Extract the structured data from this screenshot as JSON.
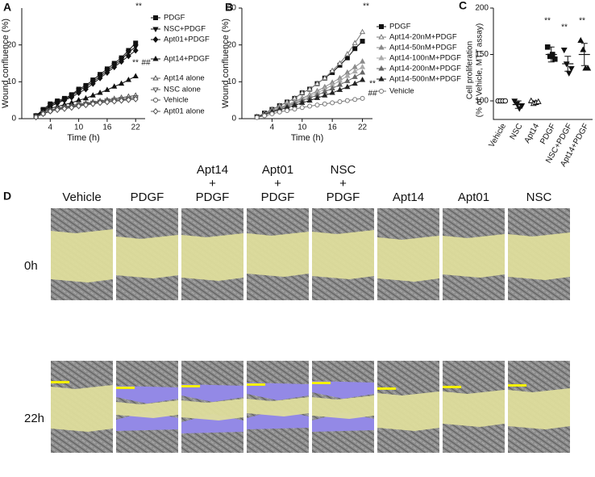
{
  "chart_data": [
    {
      "type": "line",
      "panel": "A",
      "xlabel": "Time (h)",
      "ylabel": "Wound confluence (%)",
      "x": [
        1,
        2.5,
        4,
        5.5,
        7,
        8.5,
        10,
        11.5,
        13,
        14.5,
        16,
        17.5,
        19,
        20.5,
        22
      ],
      "xlim": [
        -2,
        24
      ],
      "xticks": [
        4,
        10,
        16,
        22
      ],
      "ylim": [
        0,
        30
      ],
      "yticks": [
        0,
        10,
        20
      ],
      "annotations": [
        "**",
        "**",
        "##"
      ],
      "series": [
        {
          "name": "PDGF",
          "color": "#111111",
          "marker": "square",
          "filled": true,
          "values": [
            0.8,
            2.5,
            4,
            4.8,
            5.5,
            6.5,
            8,
            9,
            10.5,
            12,
            13.5,
            15,
            16.5,
            18.5,
            20.5
          ]
        },
        {
          "name": "NSC+PDGF",
          "color": "#111111",
          "marker": "triangle-down",
          "filled": true,
          "values": [
            0.8,
            2.2,
            3.6,
            4.5,
            5.2,
            6.2,
            7.6,
            8.6,
            10,
            11.5,
            13,
            14.5,
            16,
            18,
            19.5
          ]
        },
        {
          "name": "Apt01+PDGF",
          "color": "#111111",
          "marker": "diamond",
          "filled": true,
          "values": [
            0.7,
            2,
            3.3,
            4.2,
            5,
            5.8,
            7,
            8,
            9.5,
            11,
            12.5,
            14,
            15.5,
            17,
            18.5
          ]
        },
        {
          "name": "Apt14+PDGF",
          "color": "#111111",
          "marker": "triangle-up",
          "filled": true,
          "values": [
            0.6,
            1.8,
            2.8,
            3.3,
            3.8,
            4.3,
            5,
            5.5,
            6.3,
            7,
            7.8,
            8.7,
            9.5,
            10.5,
            11.5
          ]
        },
        {
          "name": "Apt14 alone",
          "color": "#555555",
          "marker": "triangle-up",
          "filled": false,
          "values": [
            0.5,
            1.5,
            2.3,
            2.8,
            3.2,
            3.5,
            4,
            4.2,
            4.5,
            4.8,
            5.1,
            5.4,
            5.7,
            6,
            6.3
          ]
        },
        {
          "name": "NSC alone",
          "color": "#555555",
          "marker": "triangle-down",
          "filled": false,
          "values": [
            0.5,
            1.5,
            2.2,
            2.7,
            3,
            3.3,
            3.7,
            4,
            4.3,
            4.6,
            4.9,
            5.1,
            5.3,
            5.5,
            5.8
          ]
        },
        {
          "name": "Vehicle",
          "color": "#555555",
          "marker": "circle",
          "filled": false,
          "values": [
            0.4,
            1.3,
            2,
            2.5,
            2.8,
            3.1,
            3.5,
            3.8,
            4.1,
            4.4,
            4.6,
            4.8,
            5,
            5.2,
            5.4
          ]
        },
        {
          "name": "Apt01 alone",
          "color": "#555555",
          "marker": "diamond",
          "filled": false,
          "values": [
            0.4,
            1.3,
            2,
            2.4,
            2.7,
            3,
            3.4,
            3.7,
            4,
            4.3,
            4.5,
            4.7,
            4.9,
            5.1,
            5.3
          ]
        }
      ]
    },
    {
      "type": "line",
      "panel": "B",
      "xlabel": "Time (h)",
      "ylabel": "Wound confluence (%)",
      "x": [
        1,
        2.5,
        4,
        5.5,
        7,
        8.5,
        10,
        11.5,
        13,
        14.5,
        16,
        17.5,
        19,
        20.5,
        22
      ],
      "xlim": [
        -2,
        24
      ],
      "xticks": [
        4,
        10,
        16,
        22
      ],
      "ylim": [
        0,
        30
      ],
      "yticks": [
        0,
        10,
        20,
        30
      ],
      "annotations": [
        "**",
        "**",
        "##"
      ],
      "series": [
        {
          "name": "PDGF",
          "color": "#111111",
          "marker": "square",
          "filled": true,
          "values": [
            0.5,
            1.5,
            2.5,
            3.5,
            4.5,
            5.5,
            7,
            8,
            9.5,
            11,
            12.5,
            14.5,
            16.5,
            19,
            21
          ]
        },
        {
          "name": "Apt14-20nM+PDGF",
          "color": "#777777",
          "marker": "triangle-up",
          "filled": false,
          "values": [
            0.5,
            1.5,
            2.5,
            3.5,
            4.5,
            5.5,
            7,
            8,
            9.5,
            11,
            13,
            15,
            17.5,
            20.5,
            23.5
          ]
        },
        {
          "name": "Apt14-50nM+PDGF",
          "color": "#8a8a8a",
          "marker": "triangle-up",
          "filled": true,
          "values": [
            0.5,
            1.3,
            2.2,
            3,
            3.8,
            4.6,
            5.6,
            6.5,
            7.5,
            8.6,
            9.8,
            11,
            12.5,
            14,
            15.5
          ]
        },
        {
          "name": "Apt14-100nM+PDGF",
          "color": "#aaaaaa",
          "marker": "triangle-up",
          "filled": true,
          "values": [
            0.5,
            1.3,
            2.1,
            2.9,
            3.6,
            4.4,
            5.3,
            6.1,
            7,
            8,
            9.1,
            10.3,
            11.6,
            12.8,
            14
          ]
        },
        {
          "name": "Apt14-200nM+PDGF",
          "color": "#666666",
          "marker": "triangle-up",
          "filled": true,
          "values": [
            0.4,
            1.2,
            2,
            2.7,
            3.4,
            4.1,
            4.9,
            5.6,
            6.4,
            7.3,
            8.2,
            9.2,
            10.2,
            11.3,
            12.5
          ]
        },
        {
          "name": "Apt14-500nM+PDGF",
          "color": "#222222",
          "marker": "triangle-up",
          "filled": true,
          "values": [
            0.4,
            1.1,
            1.8,
            2.4,
            3,
            3.6,
            4.3,
            4.9,
            5.6,
            6.3,
            7,
            7.8,
            8.6,
            9.5,
            10.5
          ]
        },
        {
          "name": "Vehicle",
          "color": "#777777",
          "marker": "circle",
          "filled": false,
          "values": [
            0.3,
            0.8,
            1.3,
            1.8,
            2.2,
            2.6,
            3,
            3.4,
            3.7,
            4,
            4.3,
            4.6,
            4.9,
            5.2,
            5.5
          ]
        }
      ]
    },
    {
      "type": "dot",
      "panel": "C",
      "ylabel": [
        "Cell proliferation",
        "(% of Vehicle, MTT assay)"
      ],
      "categories": [
        "Vehicle",
        "NSC",
        "Apt14",
        "PDGF",
        "NSC+PDGF",
        "Apt14+PDGF"
      ],
      "values": [
        100,
        96,
        98,
        150,
        140,
        150
      ],
      "errors": [
        1,
        4,
        2,
        8,
        8,
        12
      ],
      "points": [
        [
          100,
          100,
          100,
          100
        ],
        [
          100,
          97,
          92,
          95
        ],
        [
          100,
          97,
          98,
          99
        ],
        [
          158,
          148,
          150,
          145
        ],
        [
          155,
          140,
          130,
          135
        ],
        [
          165,
          155,
          135,
          135
        ]
      ],
      "markers": [
        "circle",
        "triangle-down",
        "triangle-up",
        "square",
        "triangle-down",
        "triangle-up"
      ],
      "filled": [
        false,
        true,
        false,
        true,
        true,
        true
      ],
      "color": "#111111",
      "ylim": [
        80,
        200
      ],
      "yticks": [
        100,
        150,
        200
      ],
      "annotations": [
        "**",
        "**",
        "**"
      ]
    }
  ],
  "panel_d": {
    "panel": "D",
    "columns": [
      [
        "Vehicle"
      ],
      [
        "PDGF"
      ],
      [
        "Apt14",
        "+",
        "PDGF"
      ],
      [
        "Apt01",
        "+",
        "PDGF"
      ],
      [
        "NSC",
        "+",
        "PDGF"
      ],
      [
        "Apt14"
      ],
      [
        "Apt01"
      ],
      [
        "NSC"
      ]
    ],
    "rows": [
      "0h",
      "22h"
    ]
  }
}
